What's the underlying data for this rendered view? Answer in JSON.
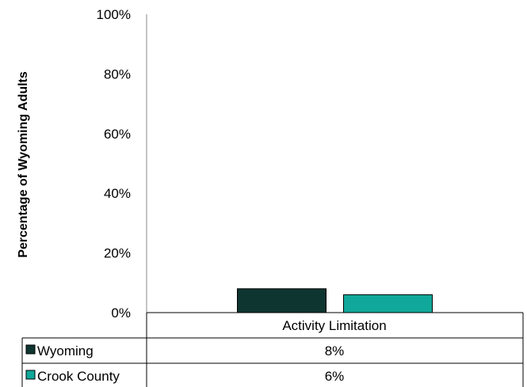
{
  "chart_data": {
    "type": "bar",
    "categories": [
      "Activity Limitation"
    ],
    "series": [
      {
        "name": "Wyoming",
        "values": [
          8
        ],
        "color": "#0f3530",
        "label": "8%"
      },
      {
        "name": "Crook County",
        "values": [
          6
        ],
        "color": "#10a89a",
        "label": "6%"
      }
    ],
    "ylabel": "Percentage of Wyoming Adults",
    "ylim": [
      0,
      100
    ],
    "yticks": [
      "0%",
      "20%",
      "40%",
      "60%",
      "80%",
      "100%"
    ],
    "grid": false,
    "legend": "data-table"
  }
}
